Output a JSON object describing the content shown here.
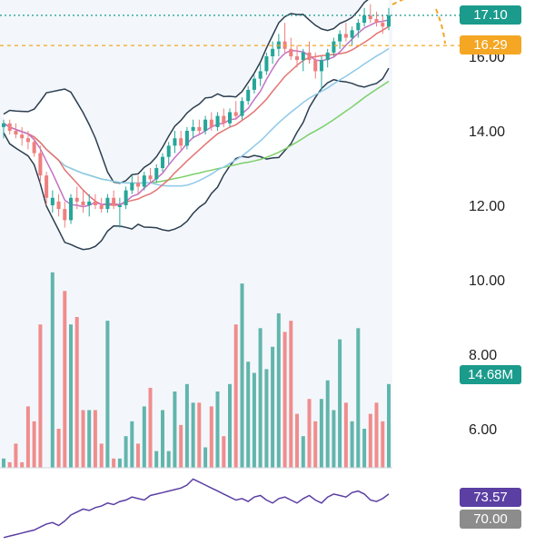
{
  "chart_data": {
    "type": "candlestick",
    "y_axis": {
      "ticks": [
        14.0,
        12.0,
        10.0,
        8.0,
        6.0
      ],
      "tick_labels": [
        "14.00",
        "12.00",
        "10.00",
        "8.00",
        "6.00"
      ],
      "partial_top_label": "16.00",
      "price_range": [
        4.0,
        17.4
      ]
    },
    "price_levels": [
      {
        "label": "17.10",
        "value": 17.1,
        "color": "#1a9b8c",
        "line": "dotted"
      },
      {
        "label": "16.29",
        "value": 16.29,
        "color": "#f5a623",
        "line": "dashed"
      }
    ],
    "volume_label": "14.68M",
    "indicators": {
      "rsi": {
        "value_label": "73.57",
        "color": "#5b3fa3",
        "level_label": "70.00"
      }
    },
    "colors": {
      "up": "#26a69a",
      "down": "#ef7f7f",
      "band": "#2c3e50",
      "ma_fast": "#c471c4",
      "ma_mid": "#e57373",
      "ma_slow": "#8fc9e8",
      "ma_long": "#7ccf6a",
      "volume_up": "#62b5ac",
      "volume_down": "#f08d8d"
    },
    "candles": [
      [
        14.1,
        14.3,
        13.8,
        14.2
      ],
      [
        14.2,
        14.3,
        13.9,
        14.0
      ],
      [
        14.0,
        14.2,
        13.8,
        13.9
      ],
      [
        13.9,
        14.1,
        13.6,
        13.8
      ],
      [
        13.8,
        14.0,
        13.5,
        13.7
      ],
      [
        13.7,
        13.8,
        13.3,
        13.4
      ],
      [
        13.4,
        13.6,
        12.6,
        12.8
      ],
      [
        12.8,
        12.9,
        12.0,
        12.2
      ],
      [
        12.0,
        12.4,
        11.8,
        12.2
      ],
      [
        12.1,
        12.3,
        11.7,
        11.9
      ],
      [
        11.9,
        12.1,
        11.4,
        11.6
      ],
      [
        11.6,
        12.3,
        11.5,
        12.2
      ],
      [
        12.2,
        12.5,
        11.9,
        12.1
      ],
      [
        12.1,
        12.4,
        11.8,
        12.0
      ],
      [
        12.0,
        12.3,
        11.7,
        12.1
      ],
      [
        12.1,
        12.3,
        11.9,
        12.0
      ],
      [
        12.0,
        12.2,
        11.8,
        11.9
      ],
      [
        11.9,
        12.3,
        11.8,
        12.2
      ],
      [
        12.2,
        12.4,
        11.9,
        12.0
      ],
      [
        12.0,
        12.2,
        11.4,
        12.0
      ],
      [
        12.0,
        12.5,
        11.9,
        12.4
      ],
      [
        12.4,
        12.8,
        12.3,
        12.6
      ],
      [
        12.6,
        12.8,
        12.3,
        12.5
      ],
      [
        12.5,
        12.9,
        12.4,
        12.8
      ],
      [
        12.8,
        13.0,
        12.6,
        12.7
      ],
      [
        12.7,
        13.1,
        12.6,
        13.0
      ],
      [
        13.0,
        13.4,
        12.9,
        13.3
      ],
      [
        13.3,
        13.7,
        13.1,
        13.6
      ],
      [
        13.6,
        14.0,
        13.4,
        13.8
      ],
      [
        13.8,
        14.0,
        13.5,
        13.6
      ],
      [
        13.6,
        14.1,
        13.5,
        14.0
      ],
      [
        14.0,
        14.3,
        13.8,
        14.1
      ],
      [
        14.1,
        14.3,
        13.9,
        14.0
      ],
      [
        14.0,
        14.4,
        13.9,
        14.3
      ],
      [
        14.3,
        14.5,
        14.0,
        14.1
      ],
      [
        14.1,
        14.5,
        14.0,
        14.4
      ],
      [
        14.4,
        14.6,
        14.1,
        14.2
      ],
      [
        14.2,
        14.6,
        14.1,
        14.5
      ],
      [
        14.5,
        14.8,
        14.3,
        14.4
      ],
      [
        14.4,
        14.9,
        14.3,
        14.8
      ],
      [
        14.8,
        15.2,
        14.7,
        15.1
      ],
      [
        15.1,
        15.5,
        15.0,
        15.4
      ],
      [
        15.4,
        15.8,
        15.2,
        15.6
      ],
      [
        15.6,
        16.1,
        15.5,
        16.0
      ],
      [
        16.0,
        16.4,
        15.8,
        16.2
      ],
      [
        16.2,
        16.6,
        16.0,
        16.4
      ],
      [
        16.4,
        16.9,
        16.1,
        16.2
      ],
      [
        16.2,
        16.5,
        15.9,
        16.0
      ],
      [
        16.0,
        16.3,
        15.7,
        15.9
      ],
      [
        15.9,
        16.2,
        15.6,
        16.1
      ],
      [
        16.1,
        16.4,
        15.8,
        15.9
      ],
      [
        15.9,
        16.1,
        15.4,
        15.6
      ],
      [
        15.6,
        16.0,
        15.1,
        15.9
      ],
      [
        15.9,
        16.2,
        15.7,
        16.1
      ],
      [
        16.1,
        16.5,
        16.0,
        16.4
      ],
      [
        16.4,
        16.7,
        16.2,
        16.6
      ],
      [
        16.6,
        16.9,
        16.4,
        16.5
      ],
      [
        16.5,
        16.8,
        16.3,
        16.7
      ],
      [
        16.7,
        17.0,
        16.5,
        16.9
      ],
      [
        16.9,
        17.3,
        16.8,
        17.1
      ],
      [
        17.1,
        17.4,
        16.9,
        17.0
      ],
      [
        17.0,
        17.2,
        16.8,
        16.9
      ],
      [
        16.9,
        17.1,
        16.6,
        16.8
      ],
      [
        16.8,
        17.3,
        16.7,
        17.1
      ]
    ],
    "volumes": [
      5.2,
      5.1,
      5.6,
      5.1,
      6.6,
      6.2,
      8.8,
      4.4,
      10.2,
      6.0,
      9.7,
      8.8,
      9.0,
      6.5,
      6.5,
      6.5,
      5.6,
      8.9,
      5.2,
      5.2,
      5.8,
      6.2,
      5.6,
      6.6,
      7.1,
      5.4,
      6.5,
      5.4,
      7.0,
      6.1,
      7.2,
      6.7,
      6.7,
      5.5,
      6.6,
      7.0,
      5.8,
      7.2,
      8.8,
      9.9,
      7.8,
      7.5,
      8.7,
      7.6,
      8.2,
      9.1,
      8.6,
      8.9,
      6.4,
      5.8,
      6.8,
      6.2,
      6.8,
      7.3,
      6.5,
      8.4,
      6.7,
      6.2,
      8.7,
      6.0,
      6.4,
      6.7,
      6.2,
      7.2
    ],
    "rsi": [
      45,
      46,
      47,
      48,
      49,
      50,
      52,
      54,
      55,
      53,
      56,
      60,
      62,
      64,
      63,
      65,
      66,
      68,
      67,
      69,
      70,
      72,
      71,
      70,
      73,
      74,
      75,
      76,
      77,
      78,
      80,
      84,
      82,
      80,
      78,
      76,
      74,
      72,
      70,
      71,
      69,
      72,
      73,
      70,
      68,
      71,
      72,
      70,
      68,
      71,
      73,
      70,
      68,
      72,
      74,
      73,
      72,
      75,
      76,
      74,
      70,
      69,
      71,
      74
    ]
  }
}
